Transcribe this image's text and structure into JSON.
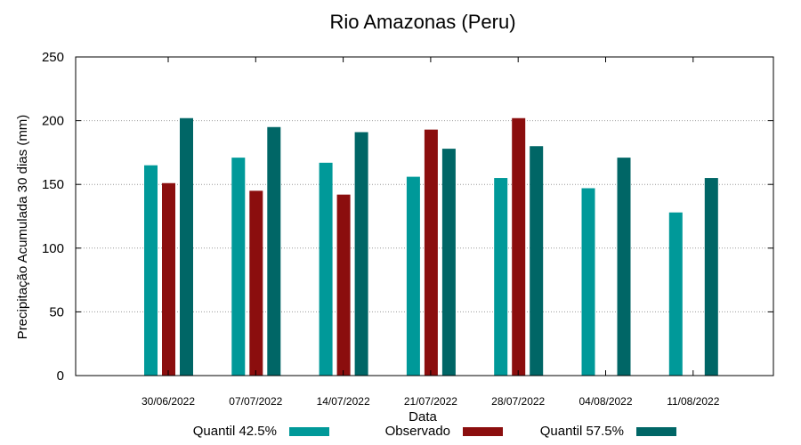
{
  "chart_data": {
    "type": "bar",
    "title": "Rio Amazonas (Peru)",
    "xlabel": "Data",
    "ylabel": "Precipitação Acumulada 30 dias (mm)",
    "ylim": [
      0,
      250
    ],
    "yticks": [
      0,
      50,
      100,
      150,
      200,
      250
    ],
    "grid": true,
    "legend_position": "bottom",
    "categories": [
      "30/06/2022",
      "07/07/2022",
      "14/07/2022",
      "21/07/2022",
      "28/07/2022",
      "04/08/2022",
      "11/08/2022"
    ],
    "series": [
      {
        "name": "Quantil 42.5%",
        "color": "#009999",
        "values": [
          165,
          171,
          167,
          156,
          155,
          147,
          128
        ]
      },
      {
        "name": "Observado",
        "color": "#8b0e0e",
        "values": [
          151,
          145,
          142,
          193,
          202,
          null,
          null
        ]
      },
      {
        "name": "Quantil 57.5%",
        "color": "#006666",
        "values": [
          202,
          195,
          191,
          178,
          180,
          171,
          155
        ]
      }
    ]
  }
}
